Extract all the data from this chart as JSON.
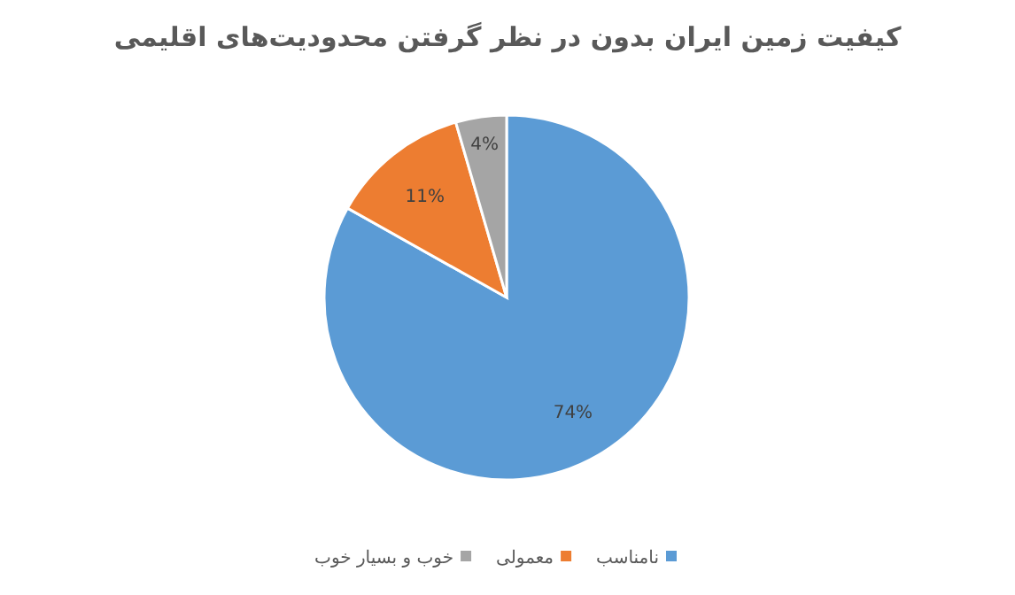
{
  "chart_data": {
    "type": "pie",
    "title": "کیفیت زمین ایران بدون در نظر گرفتن محدودیت‌های اقلیمی",
    "categories": [
      "نامناسب",
      "معمولی",
      "خوب و بسیار خوب"
    ],
    "values": [
      74,
      11,
      4
    ],
    "colors": [
      "#5b9bd5",
      "#ed7d31",
      "#a5a5a5"
    ],
    "value_labels": [
      "74%",
      "11%",
      "4%"
    ],
    "legend": "bottom"
  }
}
